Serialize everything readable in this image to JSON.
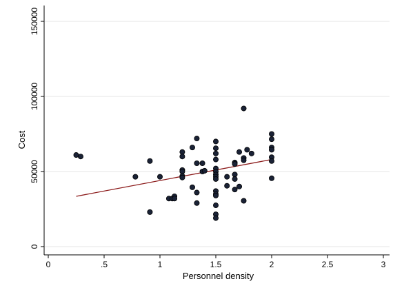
{
  "chart_data": {
    "type": "scatter",
    "xlabel": "Personnel density",
    "ylabel": "Cost",
    "xlim": [
      0,
      3
    ],
    "ylim": [
      0,
      150000
    ],
    "xticks": [
      {
        "v": 0,
        "label": "0"
      },
      {
        "v": 0.5,
        "label": ".5"
      },
      {
        "v": 1,
        "label": "1"
      },
      {
        "v": 1.5,
        "label": "1.5"
      },
      {
        "v": 2,
        "label": "2"
      },
      {
        "v": 2.5,
        "label": "2.5"
      },
      {
        "v": 3,
        "label": "3"
      }
    ],
    "yticks": [
      {
        "v": 0,
        "label": "0"
      },
      {
        "v": 50000,
        "label": "50000"
      },
      {
        "v": 100000,
        "label": "100000"
      },
      {
        "v": 150000,
        "label": "150000"
      }
    ],
    "grid": true,
    "legend": "none",
    "colors": {
      "marker_fill": "#1a2236",
      "marker_stroke": "#000000",
      "fit_line": "#8b1a1a",
      "grid": "#e5e5e5",
      "axis": "#000000",
      "background": "#ffffff"
    },
    "points": [
      {
        "x": 0.25,
        "y": 61000
      },
      {
        "x": 0.29,
        "y": 60000
      },
      {
        "x": 0.78,
        "y": 46500
      },
      {
        "x": 0.91,
        "y": 57000
      },
      {
        "x": 0.91,
        "y": 23000
      },
      {
        "x": 1.0,
        "y": 46500
      },
      {
        "x": 1.08,
        "y": 32000
      },
      {
        "x": 1.11,
        "y": 32000
      },
      {
        "x": 1.13,
        "y": 33500
      },
      {
        "x": 1.13,
        "y": 32000
      },
      {
        "x": 1.2,
        "y": 63000
      },
      {
        "x": 1.2,
        "y": 60000
      },
      {
        "x": 1.2,
        "y": 51000
      },
      {
        "x": 1.2,
        "y": 50000
      },
      {
        "x": 1.2,
        "y": 47000
      },
      {
        "x": 1.2,
        "y": 46000
      },
      {
        "x": 1.29,
        "y": 66000
      },
      {
        "x": 1.29,
        "y": 39500
      },
      {
        "x": 1.33,
        "y": 72000
      },
      {
        "x": 1.33,
        "y": 55500
      },
      {
        "x": 1.33,
        "y": 36000
      },
      {
        "x": 1.33,
        "y": 29000
      },
      {
        "x": 1.38,
        "y": 55500
      },
      {
        "x": 1.38,
        "y": 50000
      },
      {
        "x": 1.4,
        "y": 50500
      },
      {
        "x": 1.5,
        "y": 70000
      },
      {
        "x": 1.5,
        "y": 65500
      },
      {
        "x": 1.5,
        "y": 62000
      },
      {
        "x": 1.5,
        "y": 58000
      },
      {
        "x": 1.5,
        "y": 52000
      },
      {
        "x": 1.5,
        "y": 50000
      },
      {
        "x": 1.5,
        "y": 48000
      },
      {
        "x": 1.5,
        "y": 46500
      },
      {
        "x": 1.5,
        "y": 45000
      },
      {
        "x": 1.5,
        "y": 37000
      },
      {
        "x": 1.5,
        "y": 35000
      },
      {
        "x": 1.5,
        "y": 34000
      },
      {
        "x": 1.5,
        "y": 27500
      },
      {
        "x": 1.5,
        "y": 21500
      },
      {
        "x": 1.5,
        "y": 19000
      },
      {
        "x": 1.6,
        "y": 46500
      },
      {
        "x": 1.6,
        "y": 40500
      },
      {
        "x": 1.67,
        "y": 56000
      },
      {
        "x": 1.67,
        "y": 55000
      },
      {
        "x": 1.67,
        "y": 48000
      },
      {
        "x": 1.67,
        "y": 45000
      },
      {
        "x": 1.67,
        "y": 38000
      },
      {
        "x": 1.71,
        "y": 63000
      },
      {
        "x": 1.71,
        "y": 40000
      },
      {
        "x": 1.75,
        "y": 92000
      },
      {
        "x": 1.75,
        "y": 59000
      },
      {
        "x": 1.75,
        "y": 57500
      },
      {
        "x": 1.75,
        "y": 30500
      },
      {
        "x": 1.78,
        "y": 64500
      },
      {
        "x": 1.82,
        "y": 62000
      },
      {
        "x": 2.0,
        "y": 75000
      },
      {
        "x": 2.0,
        "y": 71500
      },
      {
        "x": 2.0,
        "y": 66000
      },
      {
        "x": 2.0,
        "y": 64500
      },
      {
        "x": 2.0,
        "y": 59500
      },
      {
        "x": 2.0,
        "y": 57000
      },
      {
        "x": 2.0,
        "y": 45500
      }
    ],
    "fit_line": {
      "x": [
        0.25,
        2.0
      ],
      "y": [
        33500,
        58000
      ]
    }
  }
}
